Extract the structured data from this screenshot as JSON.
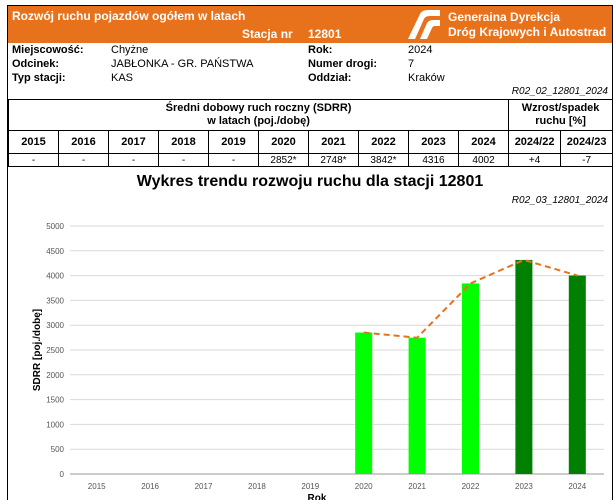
{
  "header": {
    "title": "Rozwój ruchu pojazdów ogółem w latach",
    "station_label": "Stacja nr",
    "station_number": "12801",
    "org_line1": "Generaina Dyrekcja",
    "org_line2": "Dróg Krajowych i Autostrad",
    "logo_icon": "gddkia-road-logo-icon"
  },
  "info": {
    "miejscowosc_label": "Miejscowość:",
    "miejscowosc": "Chyżne",
    "odcinek_label": "Odcinek:",
    "odcinek": "JABŁONKA - GR. PAŃSTWA",
    "typ_label": "Typ stacji:",
    "typ": "KAS",
    "rok_label": "Rok:",
    "rok": "2024",
    "droga_label": "Numer drogi:",
    "droga": "7",
    "oddzial_label": "Oddział:",
    "oddzial": "Kraków"
  },
  "table": {
    "ref": "R02_02_12801_2024",
    "sdrr_line1": "Średni dobowy ruch roczny (SDRR)",
    "sdrr_line2": "w latach (poj./dobę)",
    "growth_line1": "Wzrost/spadek",
    "growth_line2": "ruchu [%]",
    "years": [
      "2015",
      "2016",
      "2017",
      "2018",
      "2019",
      "2020",
      "2021",
      "2022",
      "2023",
      "2024"
    ],
    "values": [
      "-",
      "-",
      "-",
      "-",
      "-",
      "2852*",
      "2748*",
      "3842*",
      "4316",
      "4002"
    ],
    "growth_headers": [
      "2024/22",
      "2024/23"
    ],
    "growth_values": [
      "+4",
      "-7"
    ]
  },
  "chart_data": {
    "type": "bar",
    "title": "Wykres trendu rozwoju ruchu dla stacji 12801",
    "ref": "R02_03_12801_2024",
    "xlabel": "Rok",
    "ylabel": "SDRR [poj./dobę]",
    "ylim": [
      0,
      5000
    ],
    "yticks": [
      0,
      500,
      1000,
      1500,
      2000,
      2500,
      3000,
      3500,
      4000,
      4500,
      5000
    ],
    "categories": [
      "2015",
      "2016",
      "2017",
      "2018",
      "2019",
      "2020",
      "2021",
      "2022",
      "2023",
      "2024"
    ],
    "values": [
      null,
      null,
      null,
      null,
      null,
      2852,
      2748,
      3842,
      4316,
      4002
    ],
    "bar_colors": [
      "#00ff00",
      "#00ff00",
      "#00ff00",
      "#00ff00",
      "#00ff00",
      "#00ff00",
      "#00ff00",
      "#00ff00",
      "#008000",
      "#008000"
    ],
    "trend_line_color": "#e8721c",
    "grid": true
  }
}
